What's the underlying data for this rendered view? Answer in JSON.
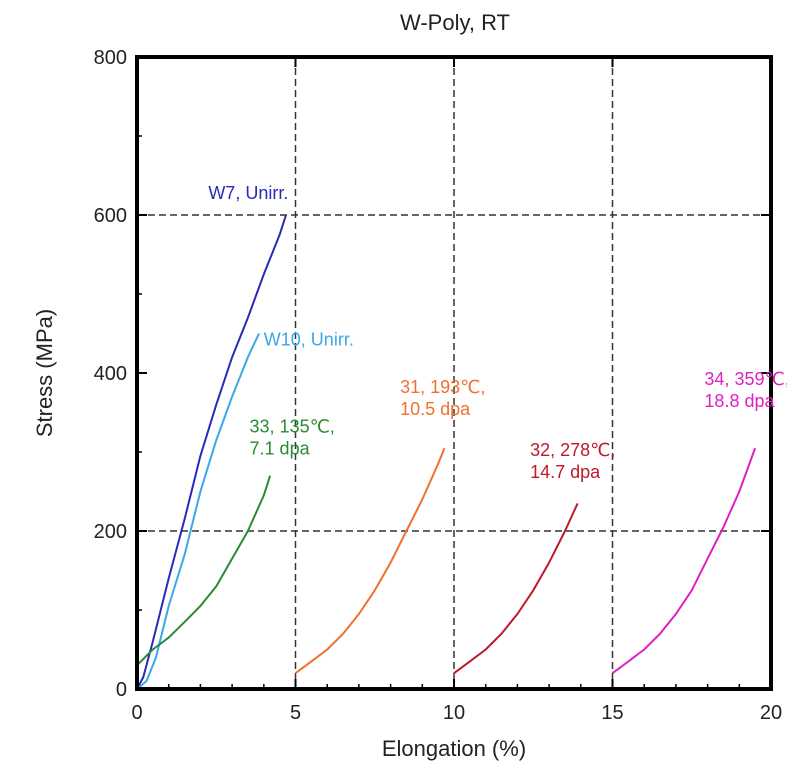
{
  "chart_data": {
    "type": "line",
    "title": "W-Poly, RT",
    "xlabel": "Elongation (%)",
    "ylabel": "Stress (MPa)",
    "xlim": [
      0,
      20
    ],
    "ylim": [
      0,
      800
    ],
    "x_ticks": [
      0,
      5,
      10,
      15,
      20
    ],
    "y_ticks": [
      0,
      200,
      400,
      600,
      800
    ],
    "grid": "dashed vertical at 5, 10, 15; dashed horizontal at 200, 600",
    "series": [
      {
        "name": "W7, Unirr.",
        "color": "#2a2ab8",
        "x": [
          0,
          0.2,
          0.5,
          1.0,
          1.5,
          2.0,
          2.5,
          3.0,
          3.5,
          4.0,
          4.5,
          4.7
        ],
        "y": [
          0,
          15,
          60,
          140,
          215,
          295,
          360,
          420,
          470,
          525,
          575,
          600
        ]
      },
      {
        "name": "W10, Unirr.",
        "color": "#3aa7e6",
        "x": [
          0,
          0.3,
          0.6,
          1.0,
          1.5,
          2.0,
          2.5,
          3.0,
          3.5,
          3.85
        ],
        "y": [
          0,
          10,
          40,
          105,
          170,
          250,
          315,
          370,
          420,
          450
        ]
      },
      {
        "name": "33, 135℃, 7.1 dpa",
        "color": "#2a8a33",
        "x": [
          0,
          0.5,
          1.0,
          1.5,
          2.0,
          2.5,
          3.0,
          3.5,
          4.0,
          4.2
        ],
        "y": [
          30,
          50,
          65,
          85,
          105,
          130,
          165,
          200,
          245,
          270
        ]
      },
      {
        "name": "31, 193℃, 10.5 dpa",
        "color": "#f07030",
        "x": [
          5.0,
          5.5,
          6.0,
          6.5,
          7.0,
          7.5,
          8.0,
          8.5,
          9.0,
          9.5,
          9.7
        ],
        "y": [
          20,
          35,
          50,
          70,
          95,
          125,
          160,
          200,
          240,
          285,
          305
        ]
      },
      {
        "name": "32, 278℃, 14.7 dpa",
        "color": "#c0182a",
        "x": [
          10.0,
          10.5,
          11.0,
          11.5,
          12.0,
          12.5,
          13.0,
          13.5,
          13.9
        ],
        "y": [
          20,
          35,
          50,
          70,
          95,
          125,
          160,
          200,
          235
        ]
      },
      {
        "name": "34, 359℃, 18.8 dpa",
        "color": "#e020c0",
        "x": [
          15.0,
          15.5,
          16.0,
          16.5,
          17.0,
          17.5,
          18.0,
          18.5,
          19.0,
          19.5
        ],
        "y": [
          20,
          35,
          50,
          70,
          95,
          125,
          165,
          205,
          250,
          305
        ]
      }
    ],
    "annotations": [
      {
        "lines": [
          "W7, Unirr."
        ],
        "color": "#2a2ab8"
      },
      {
        "lines": [
          "W10, Unirr."
        ],
        "color": "#3aa7e6"
      },
      {
        "lines": [
          "33, 135℃,",
          "7.1 dpa"
        ],
        "color": "#2a8a33"
      },
      {
        "lines": [
          "31, 193℃,",
          "10.5 dpa"
        ],
        "color": "#f07030"
      },
      {
        "lines": [
          "32, 278℃,",
          "14.7 dpa"
        ],
        "color": "#c0182a"
      },
      {
        "lines": [
          "34, 359℃,",
          "18.8 dpa"
        ],
        "color": "#e020c0"
      }
    ]
  }
}
